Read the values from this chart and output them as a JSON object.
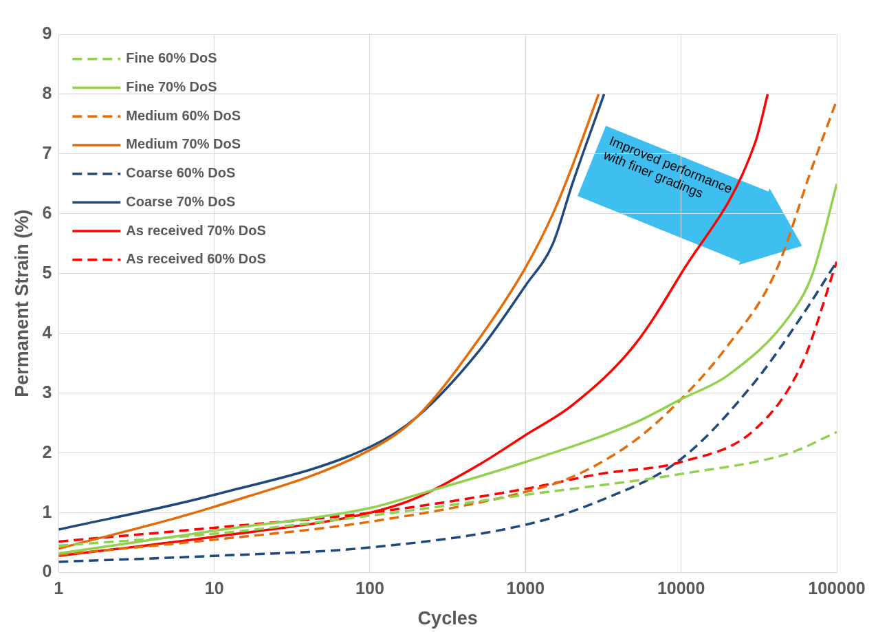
{
  "chart_data": {
    "type": "line",
    "xlabel": "Cycles",
    "ylabel": "Permanent Strain (%)",
    "log": "x",
    "grid": true,
    "legend": "top left",
    "marker": "none",
    "xlim": [
      1,
      100000
    ],
    "xticks": [
      1,
      10,
      100,
      1000,
      10000,
      100000
    ],
    "ylim": [
      0,
      9
    ],
    "yticks": [
      0,
      1,
      2,
      3,
      4,
      5,
      6,
      7,
      8,
      9
    ],
    "annotations": [
      "Improved performance with finer gradings"
    ],
    "series": [
      {
        "name": "Fine 60% DoS",
        "color": "#92d050",
        "line_style": "dashed",
        "x": [
          1,
          10,
          100,
          1000,
          10000,
          50000,
          100000
        ],
        "values": [
          0.45,
          0.65,
          0.95,
          1.3,
          1.65,
          2.0,
          2.35
        ]
      },
      {
        "name": "Fine 70% DoS",
        "color": "#92d050",
        "line_style": "solid",
        "x": [
          1,
          10,
          100,
          200,
          1000,
          5000,
          10000,
          20000,
          50000,
          70000,
          100000
        ],
        "values": [
          0.32,
          0.7,
          1.08,
          1.3,
          1.85,
          2.5,
          2.9,
          3.3,
          4.3,
          5.0,
          6.5
        ]
      },
      {
        "name": "Medium 60% DoS",
        "color": "#e36c0a",
        "line_style": "dashed",
        "x": [
          1,
          10,
          100,
          1000,
          2000,
          5000,
          10000,
          20000,
          40000,
          70000,
          100000
        ],
        "values": [
          0.3,
          0.55,
          0.85,
          1.35,
          1.6,
          2.2,
          2.9,
          3.8,
          5.0,
          6.8,
          7.9
        ]
      },
      {
        "name": "Medium 70% DoS",
        "color": "#e36c0a",
        "line_style": "solid",
        "x": [
          1,
          10,
          100,
          200,
          500,
          1000,
          1500,
          2000,
          2950
        ],
        "values": [
          0.4,
          1.1,
          2.05,
          2.6,
          3.9,
          5.1,
          6.0,
          6.8,
          8.0
        ]
      },
      {
        "name": "Coarse 60% DoS",
        "color": "#1f497d",
        "line_style": "dashed",
        "x": [
          1,
          10,
          100,
          1000,
          3000,
          10000,
          30000,
          60000,
          100000
        ],
        "values": [
          0.18,
          0.28,
          0.42,
          0.8,
          1.2,
          1.9,
          3.2,
          4.3,
          5.2
        ]
      },
      {
        "name": "Coarse 70% DoS",
        "color": "#1f497d",
        "line_style": "solid",
        "x": [
          1,
          10,
          100,
          200,
          500,
          1000,
          1500,
          2000,
          3200
        ],
        "values": [
          0.72,
          1.3,
          2.1,
          2.6,
          3.7,
          4.8,
          5.5,
          6.5,
          8.0
        ]
      },
      {
        "name": "As received 70% DoS",
        "color": "#ff0000",
        "line_style": "solid",
        "x": [
          1,
          10,
          100,
          200,
          500,
          1000,
          2000,
          5000,
          10000,
          30000,
          36000
        ],
        "values": [
          0.28,
          0.6,
          1.0,
          1.25,
          1.8,
          2.3,
          2.8,
          3.8,
          5.0,
          7.2,
          8.0
        ]
      },
      {
        "name": "As received 60% DoS",
        "color": "#ff0000",
        "line_style": "dashed",
        "x": [
          1,
          10,
          100,
          1000,
          3000,
          10000,
          30000,
          60000,
          100000
        ],
        "values": [
          0.52,
          0.75,
          1.0,
          1.4,
          1.65,
          1.85,
          2.4,
          3.5,
          5.2
        ]
      }
    ]
  }
}
